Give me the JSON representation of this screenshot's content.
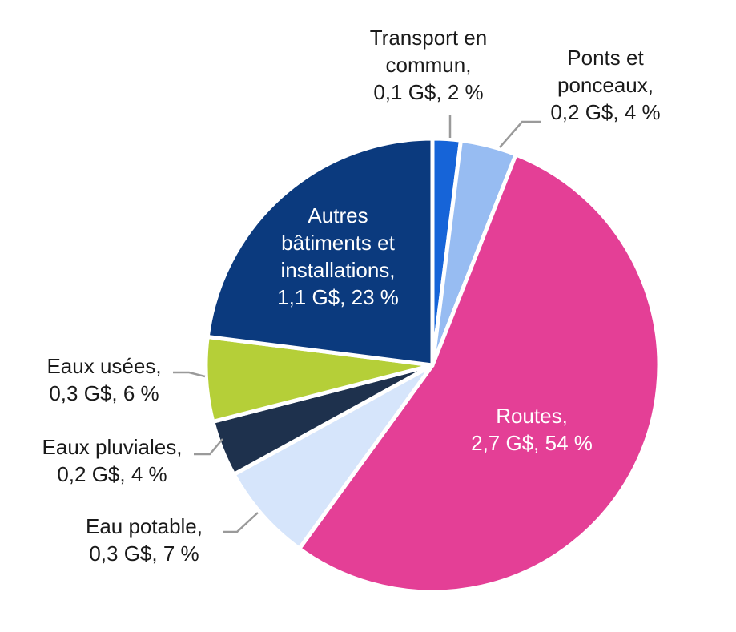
{
  "chart_data": {
    "type": "pie",
    "unit": "G$",
    "slices": [
      {
        "name": "Transport en commun",
        "value": 0.1,
        "percent": 2,
        "color": "#1664d8",
        "lines": [
          "Transport en",
          "commun,",
          "0,1 G$, 2 %"
        ]
      },
      {
        "name": "Ponts et ponceaux",
        "value": 0.2,
        "percent": 4,
        "color": "#97bcf2",
        "lines": [
          "Ponts et",
          "ponceaux,",
          "0,2 G$, 4 %"
        ]
      },
      {
        "name": "Routes",
        "value": 2.7,
        "percent": 54,
        "color": "#e43f96",
        "lines": [
          "Routes,",
          "2,7 G$, 54 %"
        ]
      },
      {
        "name": "Eau potable",
        "value": 0.3,
        "percent": 7,
        "color": "#d6e5fb",
        "lines": [
          "Eau potable,",
          "0,3 G$, 7 %"
        ]
      },
      {
        "name": "Eaux pluviales",
        "value": 0.2,
        "percent": 4,
        "color": "#1e314d",
        "lines": [
          "Eaux pluviales,",
          "0,2 G$, 4 %"
        ]
      },
      {
        "name": "Eaux usées",
        "value": 0.3,
        "percent": 6,
        "color": "#b5cf38",
        "lines": [
          "Eaux usées,",
          "0,3 G$, 6 %"
        ]
      },
      {
        "name": "Autres bâtiments et installations",
        "value": 1.1,
        "percent": 23,
        "color": "#0b3a7e",
        "lines": [
          "Autres",
          "bâtiments et",
          "installations,",
          "1,1 G$, 23 %"
        ]
      }
    ]
  }
}
